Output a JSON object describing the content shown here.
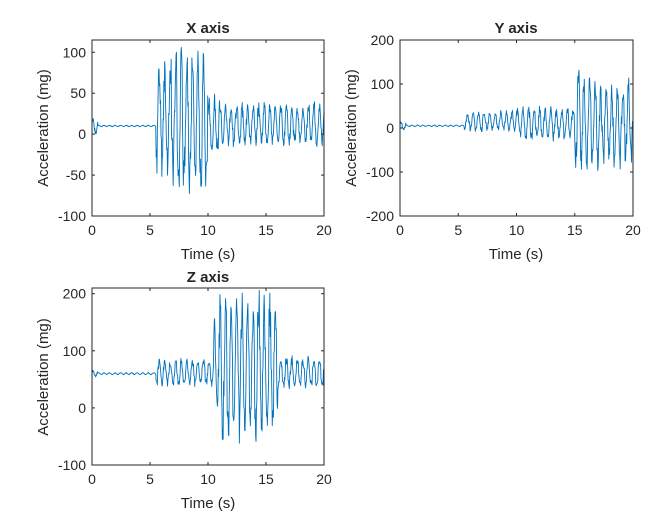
{
  "figure": {
    "background": "#ffffff",
    "line_color": "#0072bd",
    "axes_color": "#262626"
  },
  "chart_data": [
    {
      "type": "line",
      "title": "X axis",
      "xlabel": "Time (s)",
      "ylabel": "Acceleration (mg)",
      "xlim": [
        0,
        20
      ],
      "ylim": [
        -100,
        115
      ],
      "xticks": [
        0,
        5,
        10,
        15,
        20
      ],
      "yticks": [
        -100,
        -50,
        0,
        50,
        100
      ],
      "grid": false,
      "series": [
        {
          "segments": [
            {
              "t0": 0.0,
              "t1": 0.5,
              "center": 10,
              "amp": 12
            },
            {
              "t0": 0.5,
              "t1": 5.5,
              "center": 10,
              "amp": 1
            },
            {
              "t0": 5.5,
              "t1": 6.5,
              "center": 20,
              "amp": 80
            },
            {
              "t0": 6.5,
              "t1": 10.0,
              "center": 15,
              "amp": 95
            },
            {
              "t0": 10.0,
              "t1": 11.0,
              "center": 10,
              "amp": 40
            },
            {
              "t0": 11.0,
              "t1": 20.0,
              "center": 12,
              "amp": 28
            }
          ]
        }
      ]
    },
    {
      "type": "line",
      "title": "Y axis",
      "xlabel": "Time (s)",
      "ylabel": "Acceleration (mg)",
      "xlim": [
        0,
        20
      ],
      "ylim": [
        -200,
        200
      ],
      "xticks": [
        0,
        5,
        10,
        15,
        20
      ],
      "yticks": [
        -200,
        -100,
        0,
        100,
        200
      ],
      "grid": false,
      "series": [
        {
          "segments": [
            {
              "t0": 0.0,
              "t1": 0.5,
              "center": 5,
              "amp": 12
            },
            {
              "t0": 0.5,
              "t1": 5.5,
              "center": 5,
              "amp": 2
            },
            {
              "t0": 5.5,
              "t1": 10.0,
              "center": 15,
              "amp": 25
            },
            {
              "t0": 10.0,
              "t1": 15.0,
              "center": 10,
              "amp": 40
            },
            {
              "t0": 15.0,
              "t1": 16.5,
              "center": 15,
              "amp": 125
            },
            {
              "t0": 16.5,
              "t1": 20.0,
              "center": 10,
              "amp": 105
            }
          ]
        }
      ]
    },
    {
      "type": "line",
      "title": "Z axis",
      "xlabel": "Time (s)",
      "ylabel": "Acceleration (mg)",
      "xlim": [
        0,
        20
      ],
      "ylim": [
        -100,
        210
      ],
      "xticks": [
        0,
        5,
        10,
        15,
        20
      ],
      "yticks": [
        -100,
        0,
        100,
        200
      ],
      "grid": false,
      "series": [
        {
          "segments": [
            {
              "t0": 0.0,
              "t1": 0.5,
              "center": 60,
              "amp": 6
            },
            {
              "t0": 0.5,
              "t1": 5.5,
              "center": 60,
              "amp": 2
            },
            {
              "t0": 5.5,
              "t1": 10.5,
              "center": 62,
              "amp": 25
            },
            {
              "t0": 10.5,
              "t1": 11.0,
              "center": 70,
              "amp": 90
            },
            {
              "t0": 11.0,
              "t1": 16.0,
              "center": 70,
              "amp": 135
            },
            {
              "t0": 16.0,
              "t1": 20.0,
              "center": 62,
              "amp": 30
            }
          ]
        }
      ]
    }
  ]
}
